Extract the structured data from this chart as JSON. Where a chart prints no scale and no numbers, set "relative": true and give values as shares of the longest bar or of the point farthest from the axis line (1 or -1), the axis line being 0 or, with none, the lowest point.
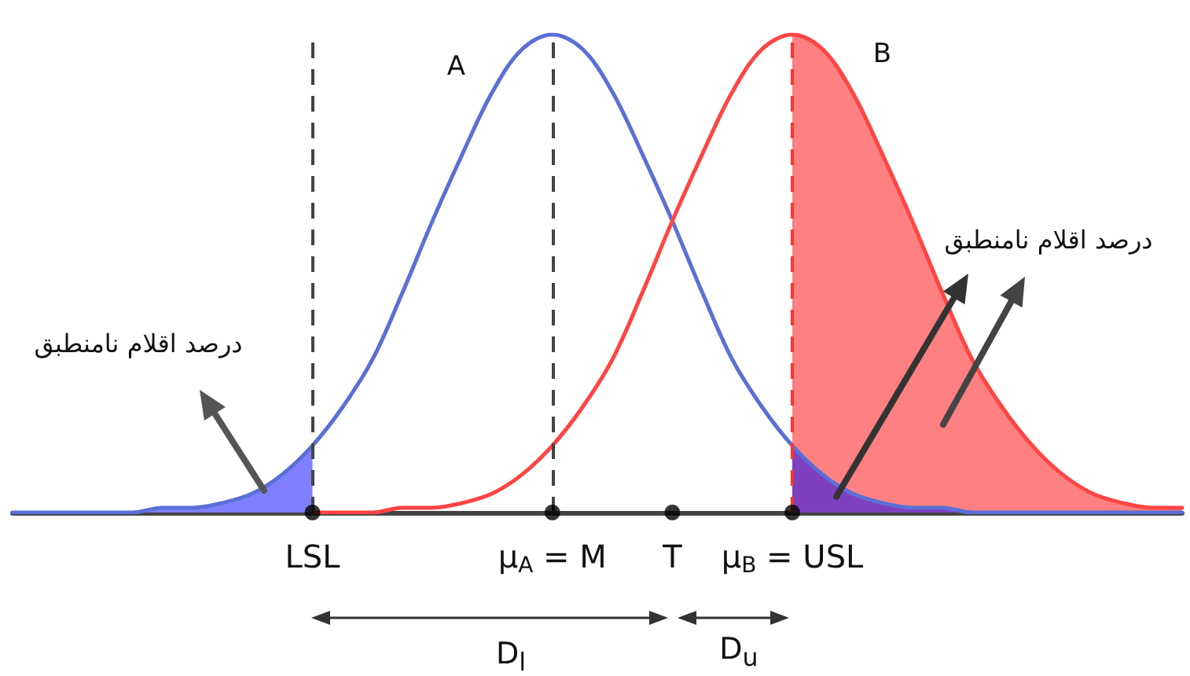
{
  "chart_data": {
    "type": "line",
    "relative": true,
    "tick_labels": "x",
    "categories": [
      null,
      null,
      null,
      null,
      null,
      null,
      null,
      null,
      null,
      null,
      "LSL",
      null,
      null,
      null,
      null,
      null,
      null,
      null,
      "μ$_{A}$ = M",
      null,
      null,
      null,
      "T",
      null,
      null,
      null,
      "μ$_{B}$ = USL",
      null,
      null,
      null,
      null,
      null,
      null,
      null,
      null,
      null,
      null,
      null,
      null,
      null
    ],
    "series": [
      {
        "type": "area",
        "color": "#8080ff",
        "values": [
          0,
          0,
          0,
          0,
          0,
          0.01,
          0.01,
          0.02,
          0.04,
          0.08,
          0.14,
          null,
          null,
          null,
          null,
          null,
          null,
          null,
          null,
          null,
          null,
          null,
          null,
          null,
          null,
          null,
          null,
          null,
          null,
          null,
          null,
          null,
          null,
          null,
          null,
          null,
          null,
          null,
          null,
          null
        ]
      },
      {
        "type": "area",
        "color": "#ff8080",
        "values": [
          null,
          null,
          null,
          null,
          null,
          null,
          null,
          null,
          null,
          null,
          null,
          null,
          null,
          null,
          null,
          null,
          null,
          null,
          null,
          null,
          null,
          null,
          null,
          null,
          null,
          null,
          1,
          0.97,
          0.88,
          0.75,
          0.61,
          0.46,
          0.32,
          0.22,
          0.14,
          0.08,
          0.04,
          0.02,
          0.01,
          0.01
        ]
      },
      {
        "type": "area",
        "color": "#7f40c0",
        "values": [
          null,
          null,
          null,
          null,
          null,
          null,
          null,
          null,
          null,
          null,
          null,
          null,
          null,
          null,
          null,
          null,
          null,
          null,
          null,
          null,
          null,
          null,
          null,
          null,
          null,
          null,
          0.14,
          0.08,
          0.04,
          0.02,
          0.01,
          0.01,
          0,
          0,
          0,
          0,
          0,
          0,
          0,
          0
        ]
      },
      {
        "name": "A",
        "color": "#5b6fd6",
        "values": [
          0,
          0,
          0,
          0,
          0,
          0.01,
          0.01,
          0.02,
          0.04,
          0.08,
          0.14,
          0.22,
          0.32,
          0.46,
          0.61,
          0.75,
          0.88,
          0.97,
          1,
          0.97,
          0.88,
          0.75,
          0.61,
          0.46,
          0.32,
          0.22,
          0.14,
          0.08,
          0.04,
          0.02,
          0.01,
          0.01,
          0,
          0,
          0,
          0,
          0,
          0,
          0,
          0
        ]
      },
      {
        "name": "B",
        "color": "#ff4444",
        "values": [
          null,
          null,
          null,
          null,
          null,
          null,
          null,
          null,
          null,
          null,
          0,
          0,
          0,
          0.01,
          0.01,
          0.02,
          0.04,
          0.08,
          0.14,
          0.22,
          0.32,
          0.46,
          0.61,
          0.75,
          0.88,
          0.97,
          1,
          0.97,
          0.88,
          0.75,
          0.61,
          0.46,
          0.32,
          0.22,
          0.14,
          0.08,
          0.04,
          0.02,
          0.01,
          0.01
        ]
      },
      {
        "type": "scatter",
        "marker": "circle",
        "color": "#000000",
        "x": [
          "LSL",
          "μ$_{A}$ = M",
          "T",
          "μ$_{B}$ = USL"
        ],
        "values": [
          0,
          0,
          0,
          0
        ]
      }
    ],
    "ref_lines": [
      {
        "axis": "x",
        "value": "LSL",
        "color": "#444444",
        "line_style": "dashed"
      },
      {
        "axis": "x",
        "value": "μ$_{A}$ = M",
        "color": "#444444",
        "line_style": "dashed"
      },
      {
        "axis": "x",
        "value": "μ$_{B}$ = USL",
        "color": "#ff3333",
        "line_style": "dashed"
      }
    ],
    "annotations": [
      "درصد اقلام نامنطبق",
      "درصد اقلام نامنطبق",
      "D$_{l}$",
      "D$_{u}$"
    ]
  }
}
